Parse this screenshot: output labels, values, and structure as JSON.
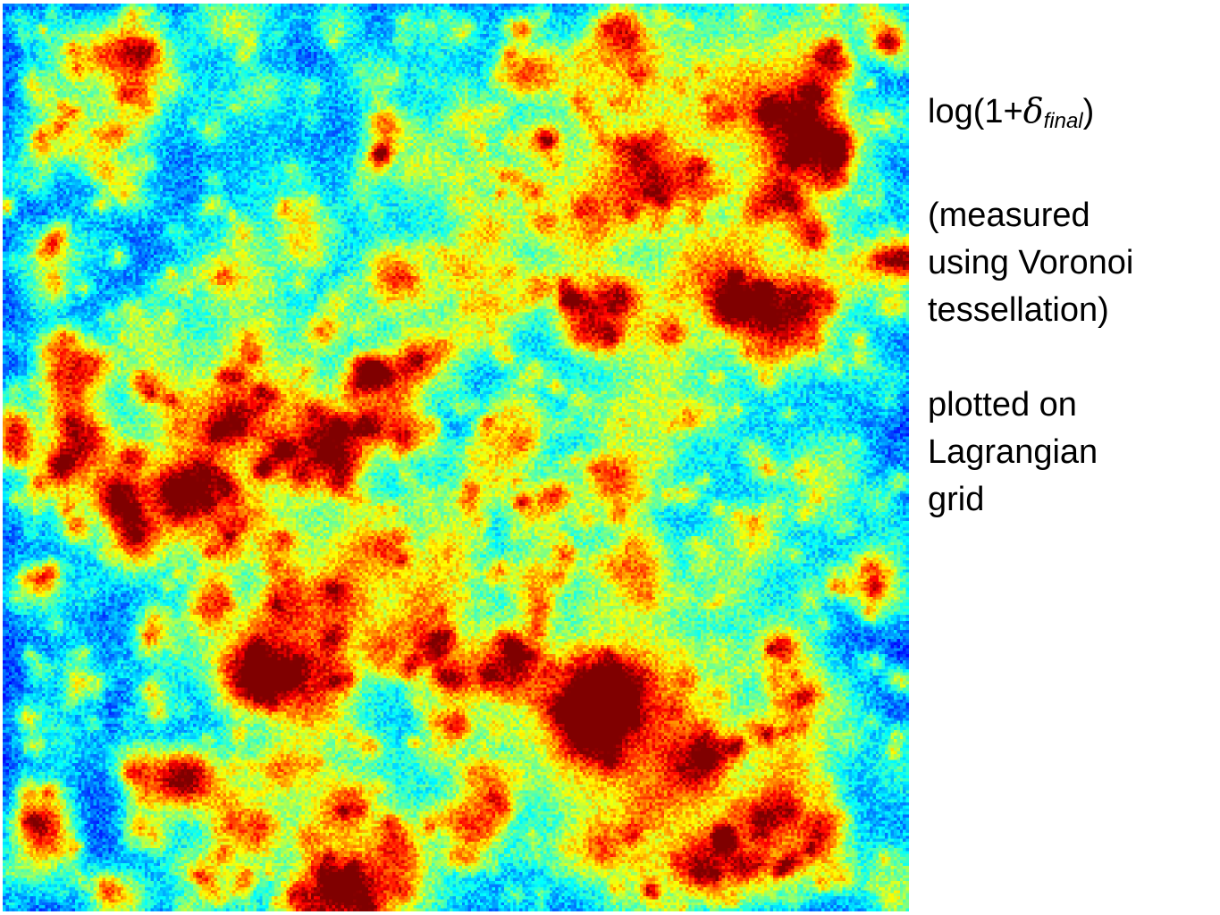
{
  "chart_data": {
    "type": "heatmap",
    "colormap": "jet",
    "colorbar": false,
    "axes_visible": false,
    "grid": false
  },
  "caption": {
    "title_prefix": "log(1+",
    "title_symbol": "δ",
    "title_subscript": "final",
    "title_suffix": ")",
    "measure_note": "(measured\nusing Voronoi\ntessellation)",
    "grid_note": "plotted on\nLagrangian\ngrid"
  }
}
